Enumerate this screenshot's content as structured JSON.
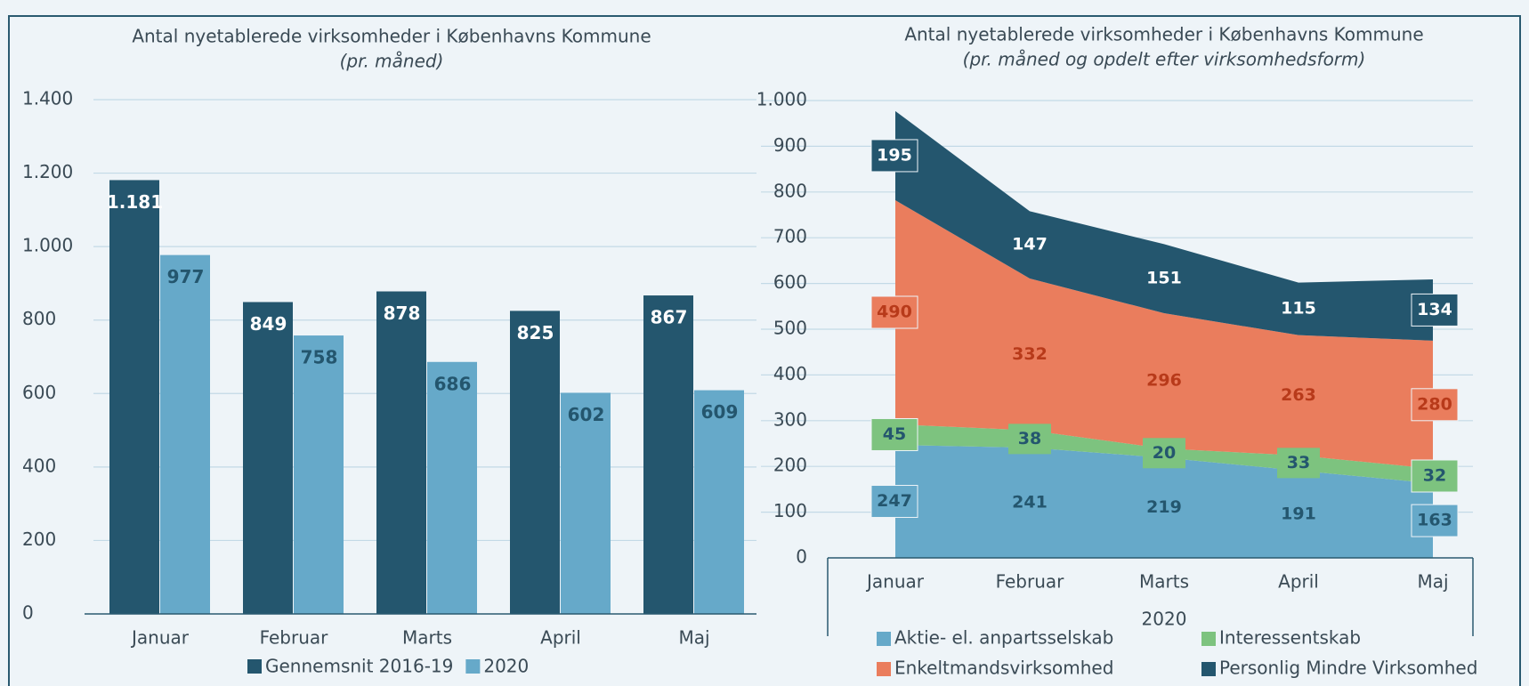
{
  "chart_data": [
    {
      "type": "bar",
      "title": "Antal nyetablerede virksomheder i Københavns Kommune",
      "subtitle": "(pr. måned)",
      "categories": [
        "Januar",
        "Februar",
        "Marts",
        "April",
        "Maj"
      ],
      "series": [
        {
          "name": "Gennemsnit 2016-19",
          "color": "#24566e",
          "values": [
            1181,
            849,
            878,
            825,
            867
          ],
          "value_labels": [
            "1.181",
            "849",
            "878",
            "825",
            "867"
          ]
        },
        {
          "name": "2020",
          "color": "#66a9c9",
          "values": [
            977,
            758,
            686,
            602,
            609
          ]
        }
      ],
      "ylim": [
        0,
        1400
      ],
      "yticks": [
        0,
        200,
        400,
        600,
        800,
        {
          "value": 1000,
          "label": "1.000"
        },
        {
          "value": 1200,
          "label": "1.200"
        },
        {
          "value": 1400,
          "label": "1.400"
        }
      ],
      "grid": true
    },
    {
      "type": "area",
      "stacked": true,
      "title": "Antal nyetablerede virksomheder i Københavns Kommune",
      "subtitle": "(pr. måned og opdelt efter virksomhedsform)",
      "categories": [
        "Januar",
        "Februar",
        "Marts",
        "April",
        "Maj"
      ],
      "xlabel": "2020",
      "series": [
        {
          "name": "Aktie- el. anpartsselskab",
          "color": "#66a9c9",
          "values": [
            247,
            241,
            219,
            191,
            163
          ]
        },
        {
          "name": "Interessentskab",
          "color": "#7dc37f",
          "values": [
            45,
            38,
            20,
            33,
            32
          ]
        },
        {
          "name": "Enkeltmandsvirksomhed",
          "color": "#ea7d5d",
          "values": [
            490,
            332,
            296,
            263,
            280
          ]
        },
        {
          "name": "Personlig Mindre Virksomhed",
          "color": "#24566e",
          "values": [
            195,
            147,
            151,
            115,
            134
          ]
        }
      ],
      "ylim": [
        0,
        1000
      ],
      "yticks": [
        0,
        100,
        200,
        300,
        400,
        500,
        600,
        700,
        800,
        900,
        {
          "value": 1000,
          "label": "1.000"
        }
      ],
      "grid": true
    }
  ]
}
